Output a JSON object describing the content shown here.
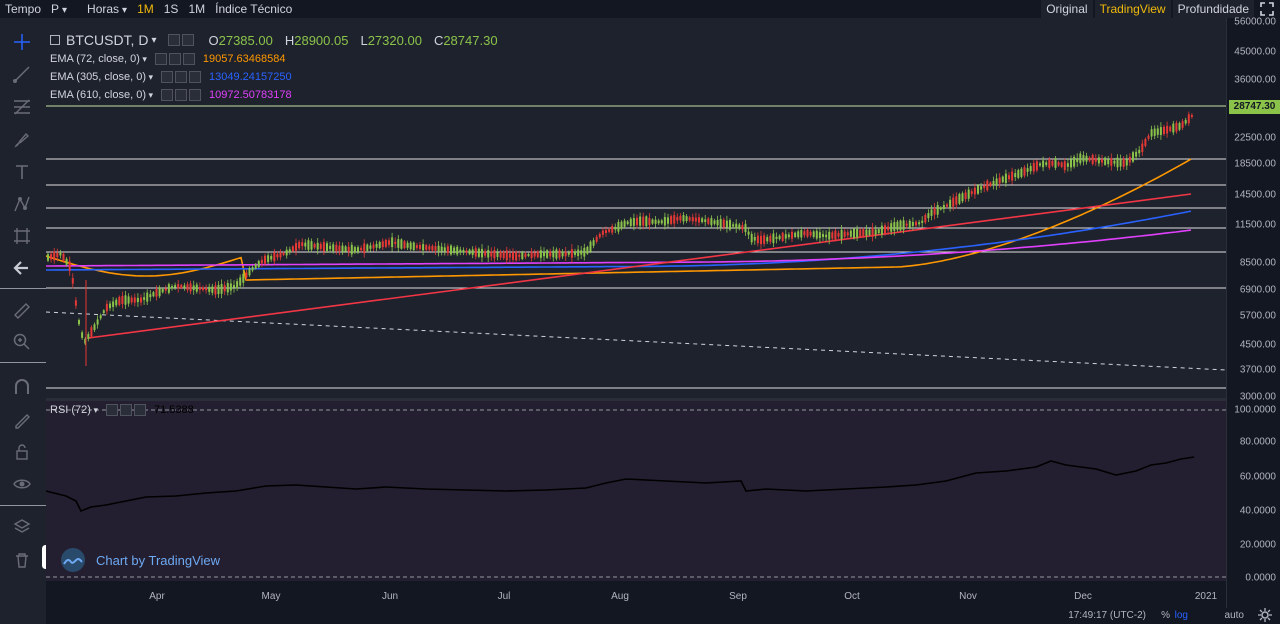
{
  "toolbar": {
    "time_label": "Tempo",
    "period_value": "P",
    "hours_label": "Horas",
    "intervals": [
      "1M",
      "1S",
      "1M"
    ],
    "technical_index": "Índice Técnico",
    "views": [
      "Original",
      "TradingView",
      "Profundidade"
    ],
    "active_view": "TradingView"
  },
  "legend": {
    "symbol": "BTCUSDT, D",
    "open_label": "O",
    "open": "27385.00",
    "high_label": "H",
    "high": "28900.05",
    "low_label": "L",
    "low": "27320.00",
    "close_label": "C",
    "close": "28747.30",
    "indicators": [
      {
        "name": "EMA (72, close, 0)",
        "value": "19057.63468584",
        "color": "#ff9800"
      },
      {
        "name": "EMA (305, close, 0)",
        "value": "13049.24157250",
        "color": "#2962ff"
      },
      {
        "name": "EMA (610, close, 0)",
        "value": "10972.50783178",
        "color": "#e040fb"
      }
    ]
  },
  "rsi": {
    "name": "RSI (72)",
    "value": "71.5388",
    "color": "#000000"
  },
  "price_axis": [
    "56000.00",
    "45000.00",
    "36000.00",
    "28747.30",
    "22500.00",
    "18500.00",
    "14500.00",
    "11500.00",
    "8500.00",
    "6900.00",
    "5700.00",
    "4500.00",
    "3700.00",
    "3000.00"
  ],
  "last_price": "28747.30",
  "rsi_axis": [
    "100.0000",
    "80.0000",
    "60.0000",
    "40.0000",
    "20.0000",
    "0.0000"
  ],
  "time_axis": [
    "Apr",
    "May",
    "Jun",
    "Jul",
    "Aug",
    "Sep",
    "Oct",
    "Nov",
    "Dec",
    "2021"
  ],
  "status": {
    "clock": "17:49:17 (UTC-2)",
    "percent": "%",
    "log": "log",
    "auto": "auto"
  },
  "watermark": "Chart by TradingView",
  "colors": {
    "up": "#8bc34a",
    "down": "#e53935",
    "ema72": "#ff9800",
    "ema305": "#2962ff",
    "ema610": "#e040fb",
    "trendline": "#f23645",
    "hline": "#e0e0e0",
    "rsi_line": "#000000"
  }
}
